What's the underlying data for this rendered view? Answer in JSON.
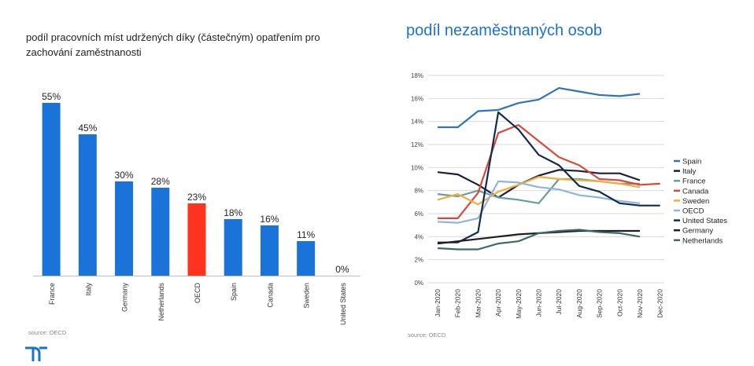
{
  "left_title": "podíl pracovních míst udržených díky (částečným) opatřením pro zachování zaměstnanosti",
  "right_title": "podíl nezaměstnaných osob",
  "left_source": "source: OECD",
  "right_source": "source: OECD",
  "chart_data": [
    {
      "type": "bar",
      "title": "podíl pracovních míst udržených díky (částečným) opatřením pro zachování zaměstnanosti",
      "categories": [
        "France",
        "Italy",
        "Germany",
        "Netherlands",
        "OECD",
        "Spain",
        "Canada",
        "Sweden",
        "United States"
      ],
      "values": [
        55,
        45,
        30,
        28,
        23,
        18,
        16,
        11,
        0
      ],
      "labels": [
        "55%",
        "45%",
        "30%",
        "28%",
        "23%",
        "18%",
        "16%",
        "11%",
        "0%"
      ],
      "colors": [
        "#1a73d9",
        "#1a73d9",
        "#1a73d9",
        "#1a73d9",
        "#ff3320",
        "#1a73d9",
        "#1a73d9",
        "#1a73d9",
        "#1a73d9"
      ],
      "ylim": [
        0,
        60
      ]
    },
    {
      "type": "line",
      "title": "podíl nezaměstnaných osob",
      "categories": [
        "Jan-2020",
        "Feb-2020",
        "Mar-2020",
        "Apr-2020",
        "May-2020",
        "Jun-2020",
        "Jul-2020",
        "Aug-2020",
        "Sep-2020",
        "Oct-2020",
        "Nov-2020",
        "Dec-2020"
      ],
      "yticks": [
        "0%",
        "2%",
        "4%",
        "6%",
        "8%",
        "10%",
        "12%",
        "14%",
        "16%",
        "18%"
      ],
      "ylim": [
        0,
        18
      ],
      "grid": true,
      "legend": "right",
      "series": [
        {
          "name": "Spain",
          "color": "#2e75b6",
          "values": [
            13.5,
            13.5,
            14.9,
            15.0,
            15.6,
            15.9,
            16.9,
            16.6,
            16.3,
            16.2,
            16.4,
            null
          ]
        },
        {
          "name": "Italy",
          "color": "#1b1f3b",
          "values": [
            9.6,
            9.4,
            8.5,
            7.4,
            8.5,
            9.3,
            9.8,
            9.7,
            9.5,
            9.5,
            8.9,
            null
          ]
        },
        {
          "name": "France",
          "color": "#6a9e9e",
          "values": [
            7.7,
            7.5,
            8.0,
            7.4,
            7.2,
            6.9,
            9.0,
            9.0,
            8.8,
            8.6,
            8.6,
            null
          ]
        },
        {
          "name": "Canada",
          "color": "#d9493b",
          "values": [
            5.6,
            5.6,
            7.8,
            13.0,
            13.7,
            12.3,
            10.9,
            10.2,
            9.0,
            8.9,
            8.5,
            8.6
          ]
        },
        {
          "name": "Sweden",
          "color": "#f2ad3b",
          "values": [
            7.2,
            7.7,
            6.8,
            7.9,
            8.5,
            9.2,
            9.0,
            8.9,
            8.8,
            8.6,
            8.3,
            null
          ]
        },
        {
          "name": "OECD",
          "color": "#8fb4dc",
          "values": [
            5.3,
            5.2,
            5.6,
            8.8,
            8.7,
            8.3,
            8.1,
            7.6,
            7.4,
            7.1,
            6.9,
            null
          ]
        },
        {
          "name": "United States",
          "color": "#0f2c4f",
          "values": [
            3.5,
            3.5,
            4.4,
            14.8,
            13.3,
            11.1,
            10.2,
            8.4,
            7.9,
            6.9,
            6.7,
            6.7
          ]
        },
        {
          "name": "Germany",
          "color": "#1e1e1e",
          "values": [
            3.4,
            3.6,
            3.8,
            4.0,
            4.2,
            4.3,
            4.4,
            4.5,
            4.5,
            4.5,
            4.5,
            null
          ]
        },
        {
          "name": "Netherlands",
          "color": "#3a6b66",
          "values": [
            3.0,
            2.9,
            2.9,
            3.4,
            3.6,
            4.3,
            4.5,
            4.6,
            4.4,
            4.3,
            4.0,
            null
          ]
        }
      ]
    }
  ]
}
